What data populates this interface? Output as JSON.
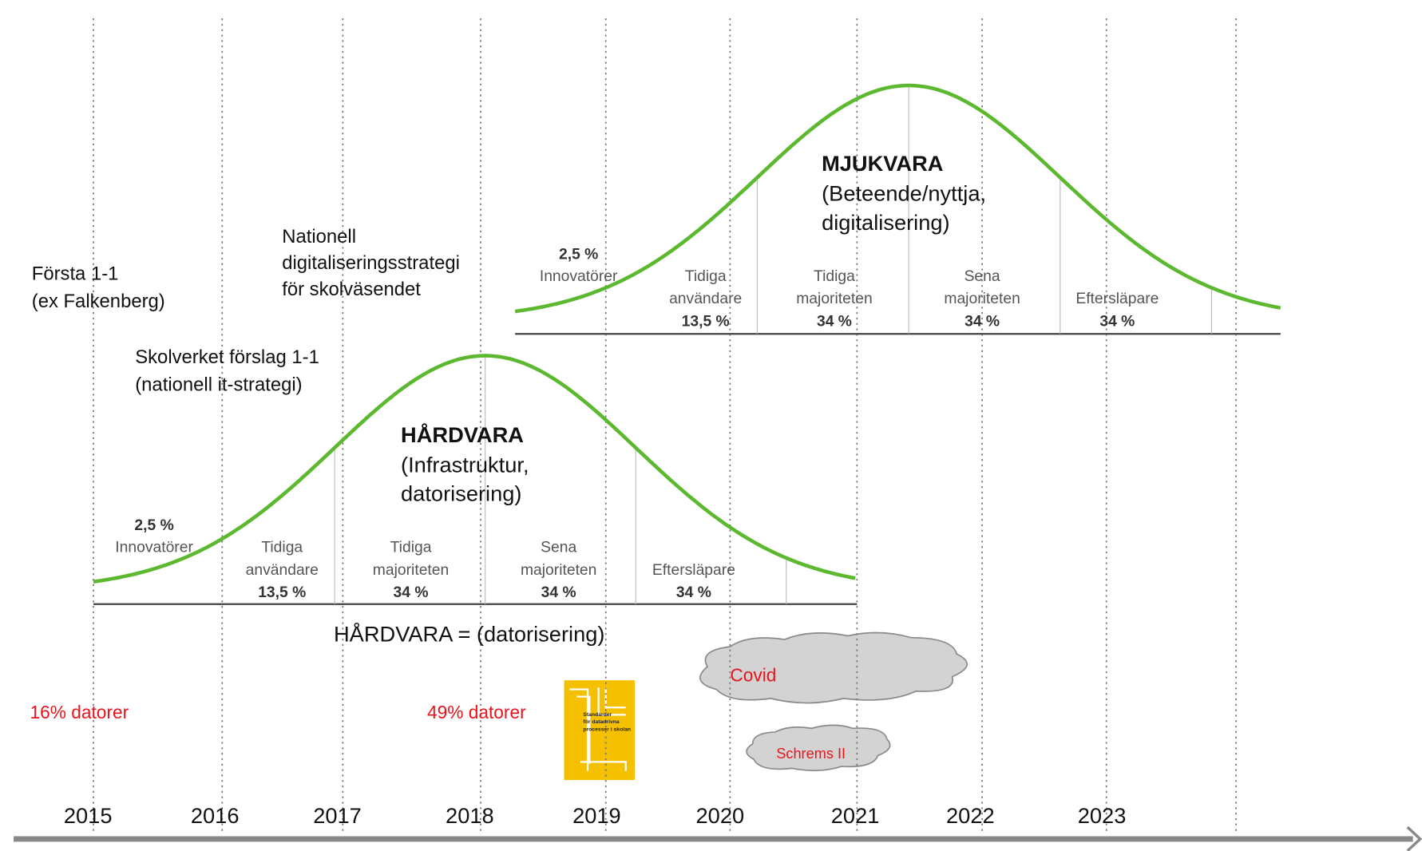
{
  "timeline": {
    "years": [
      "2015",
      "2016",
      "2017",
      "2018",
      "2019",
      "2020",
      "2021",
      "2022",
      "2023"
    ]
  },
  "annotations": [
    {
      "lines": [
        "Första 1-1",
        "(ex Falkenberg)"
      ]
    },
    {
      "lines": [
        "Nationell",
        "digitaliseringsstrategi",
        "för skolväsendet"
      ]
    },
    {
      "lines": [
        "Skolverket förslag 1-1",
        "(nationell it-strategi)"
      ]
    }
  ],
  "curves": [
    {
      "title": "HÅRDVARA",
      "subtitle": [
        "(Infrastruktur,",
        "datorisering)"
      ],
      "segments": [
        {
          "lines": [
            "2,5 %",
            "Innovatörer"
          ]
        },
        {
          "lines": [
            "Tidiga",
            "användare",
            "13,5 %"
          ]
        },
        {
          "lines": [
            "Tidiga",
            "majoriteten",
            "34 %"
          ]
        },
        {
          "lines": [
            "Sena",
            "majoriteten",
            "34 %"
          ]
        },
        {
          "lines": [
            "Eftersläpare",
            "34 %"
          ]
        }
      ]
    },
    {
      "title": "MJUKVARA",
      "subtitle": [
        "(Beteende/nyttja,",
        "digitalisering)"
      ],
      "segments": [
        {
          "lines": [
            "2,5 %",
            "Innovatörer"
          ]
        },
        {
          "lines": [
            "Tidiga",
            "användare",
            "13,5 %"
          ]
        },
        {
          "lines": [
            "Tidiga",
            "majoriteten",
            "34 %"
          ]
        },
        {
          "lines": [
            "Sena",
            "majoriteten",
            "34 %"
          ]
        },
        {
          "lines": [
            "Eftersläpare",
            "34 %"
          ]
        }
      ]
    }
  ],
  "caption": "HÅRDVARA = (datorisering)",
  "stats": [
    "16% datorer",
    "49% datorer"
  ],
  "book": [
    "Standarder",
    "för datadrivna",
    "processer i skolan"
  ],
  "clouds": [
    "Covid",
    "Schrems II"
  ]
}
